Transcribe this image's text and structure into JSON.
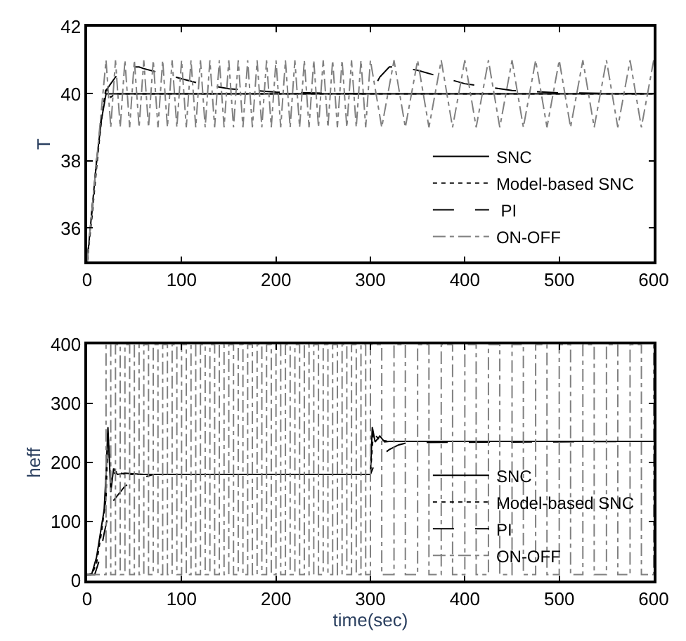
{
  "chart_data": [
    {
      "type": "line",
      "ylabel": "T",
      "xlim": [
        0,
        600
      ],
      "ylim": [
        35,
        42
      ],
      "xticks": [
        0,
        100,
        200,
        300,
        400,
        500,
        600
      ],
      "yticks": [
        36,
        38,
        40,
        42
      ],
      "legend": "bottom right",
      "series": [
        {
          "name": "SNC",
          "color": "#000000",
          "line_style": "solid",
          "x": [
            0,
            5,
            10,
            15,
            20,
            25,
            600
          ],
          "values": [
            35,
            36.5,
            38,
            39.2,
            40,
            40,
            40
          ]
        },
        {
          "name": "Model-based SNC",
          "color": "#000000",
          "line_style": "dotted",
          "x": [
            0,
            5,
            10,
            15,
            20,
            25,
            30,
            600
          ],
          "values": [
            35,
            36.3,
            37.8,
            39.2,
            40.2,
            39.9,
            40,
            40
          ]
        },
        {
          "name": " PI",
          "color": "#000000",
          "line_style": "dashed",
          "x": [
            0,
            5,
            10,
            15,
            20,
            25,
            30,
            40,
            50,
            55,
            60,
            80,
            100,
            120,
            150,
            200,
            250,
            300,
            310,
            320,
            330,
            350,
            400,
            450,
            500,
            600
          ],
          "values": [
            35,
            36.5,
            38,
            39.3,
            40.1,
            40.3,
            40.5,
            40.7,
            40.8,
            40.8,
            40.75,
            40.6,
            40.45,
            40.3,
            40.15,
            40.05,
            40.02,
            40,
            40.5,
            40.8,
            40.8,
            40.7,
            40.3,
            40.1,
            40.03,
            40
          ]
        },
        {
          "name": "ON-OFF",
          "color": "#808080",
          "line_style": "dashdot",
          "x": [
            0,
            20,
            25,
            30,
            35,
            40,
            45,
            50,
            55,
            60,
            65,
            70,
            75,
            80,
            85,
            90,
            95,
            100,
            105,
            110,
            115,
            120,
            125,
            130,
            135,
            140,
            145,
            150,
            155,
            160,
            165,
            170,
            175,
            180,
            185,
            190,
            195,
            200,
            205,
            210,
            215,
            220,
            225,
            230,
            235,
            240,
            245,
            250,
            255,
            260,
            265,
            270,
            275,
            280,
            285,
            290,
            295,
            300,
            312,
            325,
            337,
            350,
            362,
            375,
            387,
            400,
            412,
            425,
            437,
            450,
            462,
            475,
            487,
            500,
            512,
            525,
            537,
            550,
            562,
            575,
            587,
            600
          ],
          "values": [
            35,
            41,
            39,
            41,
            39,
            41,
            39,
            41,
            39,
            41,
            39,
            41,
            39,
            41,
            39,
            41,
            39,
            41,
            39,
            41,
            39,
            41,
            39,
            41,
            39,
            41,
            39,
            41,
            39,
            41,
            39,
            41,
            39,
            41,
            39,
            41,
            39,
            41,
            39,
            41,
            39,
            41,
            39,
            41,
            39,
            41,
            39,
            41,
            39,
            41,
            39,
            41,
            39,
            41,
            39,
            41,
            39,
            41,
            39,
            41,
            39,
            41,
            39,
            41,
            39,
            41,
            39,
            41,
            39,
            41,
            39,
            41,
            39,
            41,
            39,
            41,
            39,
            41,
            39,
            41,
            39,
            41
          ]
        }
      ]
    },
    {
      "type": "line",
      "xlabel": "time(sec)",
      "ylabel": "heff",
      "xlim": [
        0,
        600
      ],
      "ylim": [
        0,
        400
      ],
      "xticks": [
        0,
        100,
        200,
        300,
        400,
        500,
        600
      ],
      "yticks": [
        0,
        100,
        200,
        300,
        400
      ],
      "legend": "bottom right",
      "series": [
        {
          "name": "SNC",
          "color": "#000000",
          "line_style": "solid",
          "x": [
            0,
            5,
            10,
            15,
            18,
            20,
            22,
            25,
            28,
            32,
            40,
            60,
            300,
            302,
            305,
            310,
            315,
            320,
            600
          ],
          "values": [
            10,
            12,
            40,
            90,
            120,
            180,
            260,
            150,
            190,
            180,
            182,
            180,
            180,
            260,
            235,
            245,
            235,
            236,
            236
          ]
        },
        {
          "name": "Model-based SNC",
          "color": "#000000",
          "line_style": "dotted",
          "x": [
            0,
            5,
            10,
            15,
            20,
            22,
            25,
            30,
            40,
            60,
            300,
            303,
            310,
            320,
            600
          ],
          "values": [
            10,
            10,
            30,
            80,
            140,
            250,
            170,
            185,
            180,
            180,
            180,
            250,
            238,
            236,
            236
          ]
        },
        {
          "name": "PI",
          "color": "#000000",
          "line_style": "dashed",
          "x": [
            0,
            8,
            12,
            18,
            22,
            25,
            30,
            35,
            40,
            50,
            60,
            70,
            300,
            305,
            310,
            320,
            330,
            340,
            600
          ],
          "values": [
            10,
            10,
            30,
            80,
            110,
            130,
            140,
            150,
            160,
            170,
            175,
            180,
            180,
            200,
            210,
            222,
            230,
            234,
            236
          ]
        },
        {
          "name": "ON-OFF",
          "type": "step",
          "color": "#808080",
          "line_style": "dashdot",
          "x": [
            0,
            20,
            25,
            30,
            35,
            40,
            45,
            50,
            55,
            60,
            65,
            70,
            75,
            80,
            85,
            90,
            95,
            100,
            105,
            110,
            115,
            120,
            125,
            130,
            135,
            140,
            145,
            150,
            155,
            160,
            165,
            170,
            175,
            180,
            185,
            190,
            195,
            200,
            205,
            210,
            215,
            220,
            225,
            230,
            235,
            240,
            245,
            250,
            255,
            260,
            265,
            270,
            275,
            280,
            285,
            290,
            295,
            300,
            312,
            325,
            337,
            350,
            362,
            375,
            387,
            400,
            412,
            425,
            437,
            450,
            462,
            475,
            487,
            500,
            512,
            525,
            537,
            550,
            562,
            575,
            587,
            600
          ],
          "values": [
            10,
            400,
            10,
            400,
            10,
            400,
            10,
            400,
            10,
            400,
            10,
            400,
            10,
            400,
            10,
            400,
            10,
            400,
            10,
            400,
            10,
            400,
            10,
            400,
            10,
            400,
            10,
            400,
            10,
            400,
            10,
            400,
            10,
            400,
            10,
            400,
            10,
            400,
            10,
            400,
            10,
            400,
            10,
            400,
            10,
            400,
            10,
            400,
            10,
            400,
            10,
            400,
            10,
            400,
            10,
            400,
            10,
            400,
            10,
            400,
            10,
            400,
            10,
            400,
            10,
            400,
            10,
            400,
            10,
            400,
            10,
            400,
            10,
            400,
            10,
            400,
            10,
            400,
            10,
            400,
            10,
            400
          ]
        }
      ]
    }
  ]
}
